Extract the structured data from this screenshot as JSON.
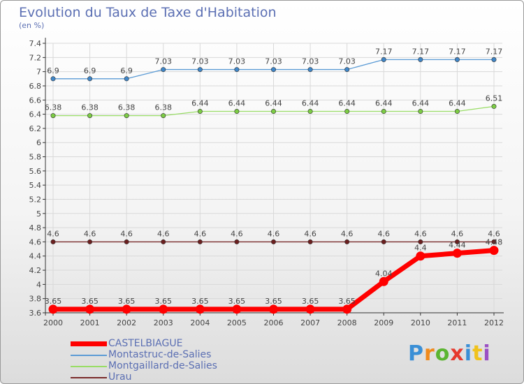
{
  "title": "Evolution du Taux de Taxe d'Habitation",
  "subtitle": "(en %)",
  "logo_text": "Proxiti",
  "colors": {
    "axis": "#333333",
    "grid": "#d9d9d9",
    "text": "#5b6fb3",
    "label": "#444444"
  },
  "chart_data": {
    "type": "line",
    "title": "Evolution du Taux de Taxe d'Habitation",
    "ylabel": "(en %)",
    "xlabel": "",
    "x": [
      "2000",
      "2001",
      "2002",
      "2003",
      "2004",
      "2005",
      "2006",
      "2007",
      "2008",
      "2009",
      "2010",
      "2011",
      "2012"
    ],
    "ylim": [
      3.6,
      7.4
    ],
    "yticks": [
      "3.6",
      "3.8",
      "4",
      "4.2",
      "4.4",
      "4.6",
      "4.8",
      "5",
      "5.2",
      "5.4",
      "5.6",
      "5.8",
      "6",
      "6.2",
      "6.4",
      "6.6",
      "6.8",
      "7",
      "7.2",
      "7.4"
    ],
    "grid": true,
    "legend_position": "bottom-left",
    "series": [
      {
        "name": "Montastruc-de-Salies",
        "color": "#5b9bd5",
        "marker": "#3f86c8",
        "width": 1.3,
        "values": [
          6.9,
          6.9,
          6.9,
          7.03,
          7.03,
          7.03,
          7.03,
          7.03,
          7.03,
          7.17,
          7.17,
          7.17,
          7.17
        ],
        "labels": [
          "6.9",
          "6.9",
          "6.9",
          "7.03",
          "7.03",
          "7.03",
          "7.03",
          "7.03",
          "7.03",
          "7.17",
          "7.17",
          "7.17",
          "7.17"
        ]
      },
      {
        "name": "Montgaillard-de-Salies",
        "color": "#99dd66",
        "marker": "#7ccc44",
        "width": 1.3,
        "values": [
          6.38,
          6.38,
          6.38,
          6.38,
          6.44,
          6.44,
          6.44,
          6.44,
          6.44,
          6.44,
          6.44,
          6.44,
          6.51
        ],
        "labels": [
          "6.38",
          "6.38",
          "6.38",
          "6.38",
          "6.44",
          "6.44",
          "6.44",
          "6.44",
          "6.44",
          "6.44",
          "6.44",
          "6.44",
          "6.51"
        ]
      },
      {
        "name": "Urau",
        "color": "#7a2a2a",
        "marker": "#6b1f1f",
        "width": 1.3,
        "values": [
          4.6,
          4.6,
          4.6,
          4.6,
          4.6,
          4.6,
          4.6,
          4.6,
          4.6,
          4.6,
          4.6,
          4.6,
          4.6
        ],
        "labels": [
          "4.6",
          "4.6",
          "4.6",
          "4.6",
          "4.6",
          "4.6",
          "4.6",
          "4.6",
          "4.6",
          "4.6",
          "4.6",
          "4.6",
          "4.6"
        ]
      },
      {
        "name": "CASTELBIAGUE",
        "color": "#ff0000",
        "marker": "#ff0000",
        "width": 7,
        "values": [
          3.65,
          3.65,
          3.65,
          3.65,
          3.65,
          3.65,
          3.65,
          3.65,
          3.65,
          4.04,
          4.4,
          4.44,
          4.48
        ],
        "labels": [
          "3.65",
          "3.65",
          "3.65",
          "3.65",
          "3.65",
          "3.65",
          "3.65",
          "3.65",
          "3.65",
          "4.04",
          "4.4",
          "4.44",
          "4.48"
        ]
      }
    ],
    "legend": [
      {
        "name": "CASTELBIAGUE",
        "color": "#ff0000"
      },
      {
        "name": "Montastruc-de-Salies",
        "color": "#5b9bd5"
      },
      {
        "name": "Montgaillard-de-Salies",
        "color": "#99dd66"
      },
      {
        "name": "Urau",
        "color": "#7a2a2a"
      }
    ]
  }
}
